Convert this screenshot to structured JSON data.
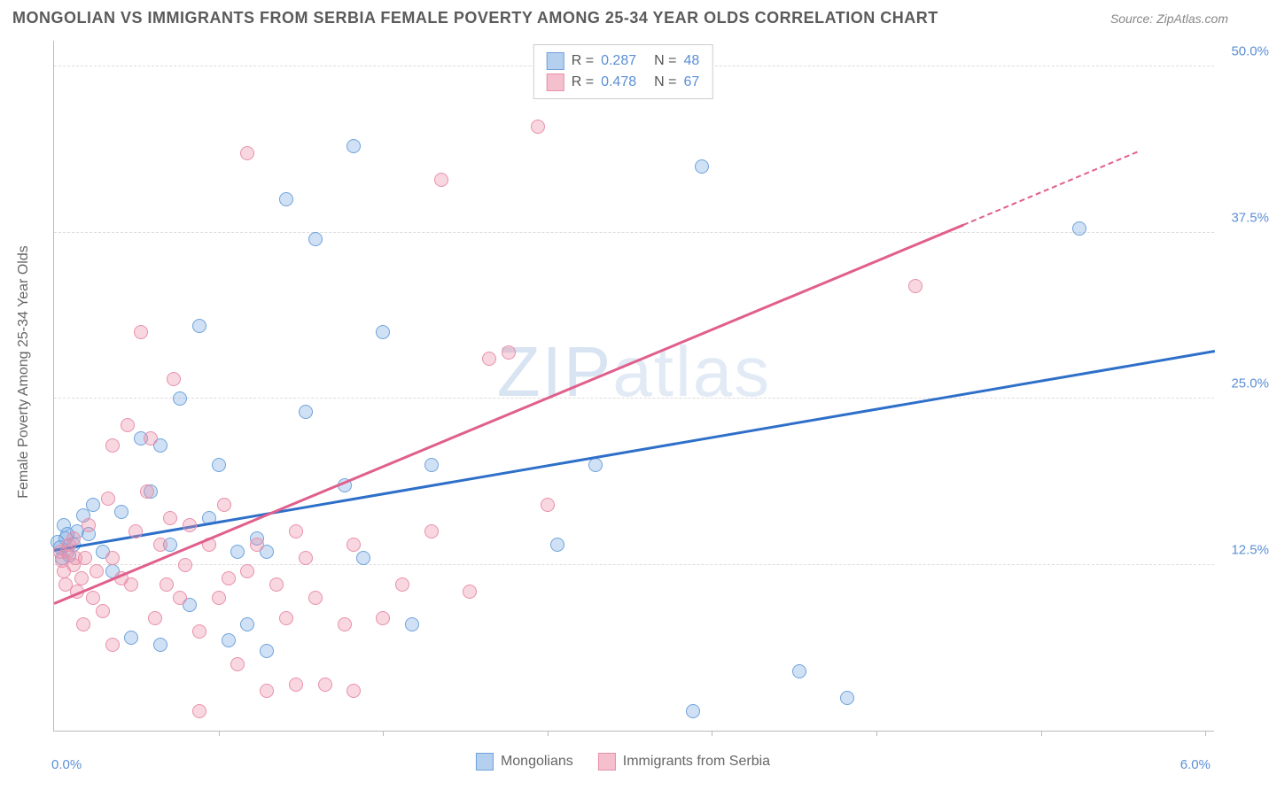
{
  "header": {
    "title": "MONGOLIAN VS IMMIGRANTS FROM SERBIA FEMALE POVERTY AMONG 25-34 YEAR OLDS CORRELATION CHART",
    "source": "Source: ZipAtlas.com"
  },
  "chart": {
    "type": "scatter",
    "watermark": "ZIPatlas",
    "y_axis_label": "Female Poverty Among 25-34 Year Olds",
    "xlim": [
      0.0,
      6.0
    ],
    "ylim": [
      0.0,
      52.0
    ],
    "x_min_label": "0.0%",
    "x_max_label": "6.0%",
    "y_ticks": [
      {
        "value": 12.5,
        "label": "12.5%"
      },
      {
        "value": 25.0,
        "label": "25.0%"
      },
      {
        "value": 37.5,
        "label": "37.5%"
      },
      {
        "value": 50.0,
        "label": "50.0%"
      }
    ],
    "x_tick_positions": [
      0.85,
      1.7,
      2.55,
      3.4,
      4.25,
      5.1,
      5.95
    ],
    "grid_color": "#dddddd",
    "axis_color": "#bbbbbb",
    "background_color": "#ffffff",
    "point_radius": 8,
    "series": [
      {
        "name": "Mongolians",
        "color_fill": "rgba(120,170,225,0.35)",
        "color_stroke": "#6fa3db",
        "trend_color": "#2e6fc9",
        "R": "0.287",
        "N": "48",
        "trend": {
          "x1": 0.0,
          "y1": 13.5,
          "x2": 6.0,
          "y2": 28.5
        },
        "points": [
          [
            0.02,
            14.2
          ],
          [
            0.04,
            13.0
          ],
          [
            0.06,
            14.5
          ],
          [
            0.08,
            13.2
          ],
          [
            0.1,
            14.0
          ],
          [
            0.05,
            15.5
          ],
          [
            0.12,
            15.0
          ],
          [
            0.15,
            16.2
          ],
          [
            0.18,
            14.8
          ],
          [
            0.2,
            17.0
          ],
          [
            0.25,
            13.5
          ],
          [
            0.3,
            12.0
          ],
          [
            0.35,
            16.5
          ],
          [
            0.4,
            7.0
          ],
          [
            0.45,
            22.0
          ],
          [
            0.5,
            18.0
          ],
          [
            0.55,
            6.5
          ],
          [
            0.55,
            21.5
          ],
          [
            0.6,
            14.0
          ],
          [
            0.65,
            25.0
          ],
          [
            0.7,
            9.5
          ],
          [
            0.75,
            30.5
          ],
          [
            0.8,
            16.0
          ],
          [
            0.85,
            20.0
          ],
          [
            0.9,
            6.8
          ],
          [
            0.95,
            13.5
          ],
          [
            1.0,
            8.0
          ],
          [
            1.05,
            14.5
          ],
          [
            1.1,
            6.0
          ],
          [
            1.1,
            13.5
          ],
          [
            1.2,
            40.0
          ],
          [
            1.3,
            24.0
          ],
          [
            1.35,
            37.0
          ],
          [
            1.5,
            18.5
          ],
          [
            1.55,
            44.0
          ],
          [
            1.6,
            13.0
          ],
          [
            1.7,
            30.0
          ],
          [
            1.85,
            8.0
          ],
          [
            1.95,
            20.0
          ],
          [
            2.6,
            14.0
          ],
          [
            2.8,
            20.0
          ],
          [
            3.35,
            42.5
          ],
          [
            3.85,
            4.5
          ],
          [
            4.1,
            2.5
          ],
          [
            3.3,
            1.5
          ],
          [
            5.3,
            37.8
          ],
          [
            0.07,
            14.8
          ],
          [
            0.03,
            13.8
          ]
        ]
      },
      {
        "name": "Immigrants from Serbia",
        "color_fill": "rgba(235,140,165,0.35)",
        "color_stroke": "#e890aa",
        "trend_color": "#e05f8c",
        "R": "0.478",
        "N": "67",
        "trend": {
          "x1": 0.0,
          "y1": 9.5,
          "x2": 4.7,
          "y2": 38.0
        },
        "trend_dash": {
          "x1": 4.7,
          "y1": 38.0,
          "x2": 5.6,
          "y2": 43.5
        },
        "points": [
          [
            0.03,
            13.5
          ],
          [
            0.05,
            12.0
          ],
          [
            0.06,
            11.0
          ],
          [
            0.08,
            14.0
          ],
          [
            0.1,
            14.5
          ],
          [
            0.1,
            12.5
          ],
          [
            0.12,
            10.5
          ],
          [
            0.14,
            11.5
          ],
          [
            0.15,
            8.0
          ],
          [
            0.16,
            13.0
          ],
          [
            0.18,
            15.5
          ],
          [
            0.2,
            10.0
          ],
          [
            0.22,
            12.0
          ],
          [
            0.25,
            9.0
          ],
          [
            0.28,
            17.5
          ],
          [
            0.3,
            6.5
          ],
          [
            0.3,
            13.0
          ],
          [
            0.3,
            21.5
          ],
          [
            0.35,
            11.5
          ],
          [
            0.38,
            23.0
          ],
          [
            0.4,
            11.0
          ],
          [
            0.42,
            15.0
          ],
          [
            0.45,
            30.0
          ],
          [
            0.48,
            18.0
          ],
          [
            0.5,
            22.0
          ],
          [
            0.52,
            8.5
          ],
          [
            0.55,
            14.0
          ],
          [
            0.58,
            11.0
          ],
          [
            0.6,
            16.0
          ],
          [
            0.62,
            26.5
          ],
          [
            0.65,
            10.0
          ],
          [
            0.68,
            12.5
          ],
          [
            0.7,
            15.5
          ],
          [
            0.75,
            7.5
          ],
          [
            0.75,
            1.5
          ],
          [
            0.8,
            14.0
          ],
          [
            0.85,
            10.0
          ],
          [
            0.88,
            17.0
          ],
          [
            0.9,
            11.5
          ],
          [
            0.95,
            5.0
          ],
          [
            1.0,
            12.0
          ],
          [
            1.0,
            43.5
          ],
          [
            1.05,
            14.0
          ],
          [
            1.1,
            3.0
          ],
          [
            1.15,
            11.0
          ],
          [
            1.2,
            8.5
          ],
          [
            1.25,
            15.0
          ],
          [
            1.25,
            3.5
          ],
          [
            1.3,
            13.0
          ],
          [
            1.35,
            10.0
          ],
          [
            1.4,
            3.5
          ],
          [
            1.5,
            8.0
          ],
          [
            1.55,
            14.0
          ],
          [
            1.55,
            3.0
          ],
          [
            1.7,
            8.5
          ],
          [
            1.8,
            11.0
          ],
          [
            1.95,
            15.0
          ],
          [
            2.0,
            41.5
          ],
          [
            2.15,
            10.5
          ],
          [
            2.25,
            28.0
          ],
          [
            2.35,
            28.5
          ],
          [
            2.5,
            45.5
          ],
          [
            2.55,
            17.0
          ],
          [
            4.45,
            33.5
          ],
          [
            0.04,
            12.8
          ],
          [
            0.07,
            13.5
          ],
          [
            0.11,
            13.0
          ]
        ]
      }
    ],
    "legend_top": {
      "rows": [
        {
          "swatch_fill": "rgba(120,170,225,0.55)",
          "swatch_stroke": "#6fa3db",
          "r": "0.287",
          "n": "48"
        },
        {
          "swatch_fill": "rgba(235,140,165,0.55)",
          "swatch_stroke": "#e890aa",
          "r": "0.478",
          "n": "67"
        }
      ]
    },
    "legend_bottom": {
      "items": [
        {
          "swatch_fill": "rgba(120,170,225,0.55)",
          "swatch_stroke": "#6fa3db",
          "label": "Mongolians"
        },
        {
          "swatch_fill": "rgba(235,140,165,0.55)",
          "swatch_stroke": "#e890aa",
          "label": "Immigrants from Serbia"
        }
      ]
    }
  }
}
